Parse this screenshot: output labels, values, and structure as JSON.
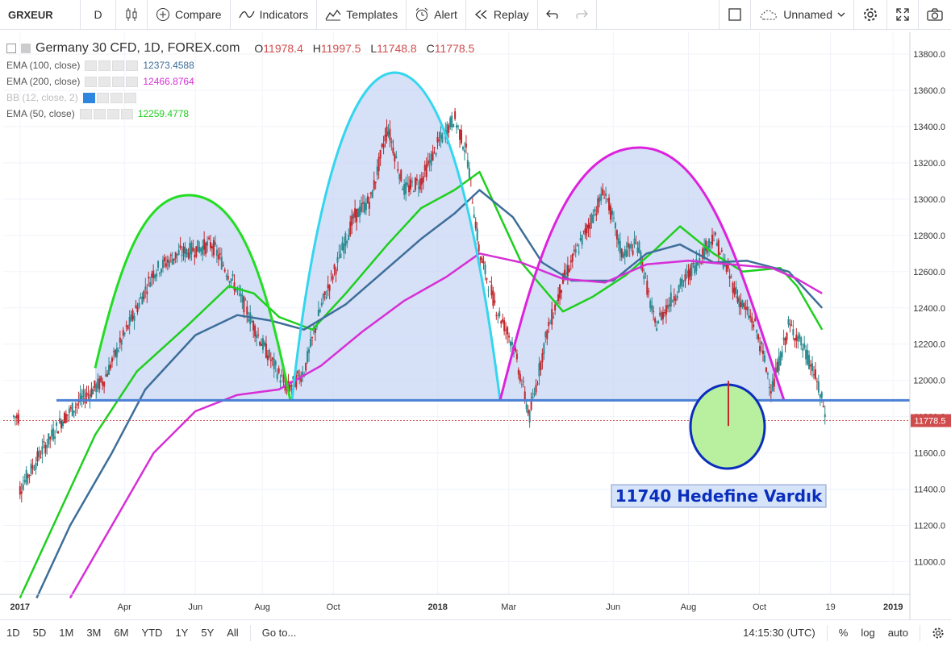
{
  "toolbar": {
    "symbol": "GRXEUR",
    "interval": "D",
    "compare": "Compare",
    "indicators": "Indicators",
    "templates": "Templates",
    "alert": "Alert",
    "replay": "Replay",
    "layout_name": "Unnamed"
  },
  "legend": {
    "title": "Germany 30 CFD, 1D, FOREX.com",
    "open_label": "O",
    "open": "11978.4",
    "high_label": "H",
    "high": "11997.5",
    "low_label": "L",
    "low": "11748.8",
    "close_label": "C",
    "close": "11778.5",
    "indicators": [
      {
        "name": "EMA (100, close)",
        "value": "12373.4588",
        "color": "#3d6e99"
      },
      {
        "name": "EMA (200, close)",
        "value": "12466.8764",
        "color": "#d62fd6"
      },
      {
        "name": "BB (12, close, 2)",
        "value": "",
        "color": "#bbbbbb"
      },
      {
        "name": "EMA (50, close)",
        "value": "12259.4778",
        "color": "#1ecf1e"
      }
    ]
  },
  "chart_data": {
    "type": "line",
    "title": "Germany 30 CFD, 1D, FOREX.com",
    "x_ticks": [
      "2017",
      "Apr",
      "Jun",
      "Aug",
      "Oct",
      "2018",
      "Mar",
      "Jun",
      "Aug",
      "Oct",
      "19",
      "2019"
    ],
    "y_ticks": [
      11000,
      11200,
      11400,
      11600,
      11800,
      12000,
      12200,
      12400,
      12600,
      12800,
      13000,
      13200,
      13400,
      13600,
      13800
    ],
    "ylim": [
      10820,
      13920
    ],
    "last_price": "11778.5",
    "neckline": 11890,
    "series": [
      {
        "name": "EMA (50, close)",
        "color": "#1ecf1e",
        "values": [
          [
            2017.0,
            10800
          ],
          [
            2017.1,
            11300
          ],
          [
            2017.18,
            11700
          ],
          [
            2017.28,
            12050
          ],
          [
            2017.4,
            12300
          ],
          [
            2017.5,
            12520
          ],
          [
            2017.56,
            12480
          ],
          [
            2017.62,
            12350
          ],
          [
            2017.7,
            12280
          ],
          [
            2017.78,
            12480
          ],
          [
            2017.88,
            12750
          ],
          [
            2017.96,
            12950
          ],
          [
            2018.04,
            13050
          ],
          [
            2018.1,
            13150
          ],
          [
            2018.15,
            12900
          ],
          [
            2018.2,
            12650
          ],
          [
            2018.3,
            12380
          ],
          [
            2018.37,
            12460
          ],
          [
            2018.45,
            12580
          ],
          [
            2018.52,
            12720
          ],
          [
            2018.58,
            12850
          ],
          [
            2018.66,
            12700
          ],
          [
            2018.73,
            12600
          ],
          [
            2018.82,
            12620
          ],
          [
            2018.86,
            12520
          ],
          [
            2018.92,
            12280
          ]
        ]
      },
      {
        "name": "EMA (100, close)",
        "color": "#3d6e99",
        "values": [
          [
            2017.04,
            10800
          ],
          [
            2017.12,
            11200
          ],
          [
            2017.22,
            11600
          ],
          [
            2017.3,
            11950
          ],
          [
            2017.42,
            12250
          ],
          [
            2017.52,
            12360
          ],
          [
            2017.6,
            12330
          ],
          [
            2017.68,
            12280
          ],
          [
            2017.78,
            12420
          ],
          [
            2017.86,
            12580
          ],
          [
            2017.96,
            12780
          ],
          [
            2018.04,
            12920
          ],
          [
            2018.1,
            13050
          ],
          [
            2018.18,
            12900
          ],
          [
            2018.25,
            12650
          ],
          [
            2018.32,
            12550
          ],
          [
            2018.42,
            12550
          ],
          [
            2018.5,
            12700
          ],
          [
            2018.58,
            12750
          ],
          [
            2018.66,
            12650
          ],
          [
            2018.74,
            12660
          ],
          [
            2018.84,
            12600
          ],
          [
            2018.92,
            12400
          ]
        ]
      },
      {
        "name": "EMA (200, close)",
        "color": "#d62fd6",
        "values": [
          [
            2017.12,
            10800
          ],
          [
            2017.22,
            11200
          ],
          [
            2017.32,
            11600
          ],
          [
            2017.42,
            11830
          ],
          [
            2017.52,
            11920
          ],
          [
            2017.62,
            11950
          ],
          [
            2017.72,
            12080
          ],
          [
            2017.82,
            12270
          ],
          [
            2017.92,
            12440
          ],
          [
            2018.02,
            12570
          ],
          [
            2018.1,
            12700
          ],
          [
            2018.2,
            12650
          ],
          [
            2018.3,
            12560
          ],
          [
            2018.4,
            12540
          ],
          [
            2018.5,
            12640
          ],
          [
            2018.6,
            12660
          ],
          [
            2018.7,
            12640
          ],
          [
            2018.8,
            12620
          ],
          [
            2018.86,
            12560
          ],
          [
            2018.92,
            12480
          ]
        ]
      }
    ]
  },
  "annotation": {
    "text": "11740 Hedefine Vardık"
  },
  "bottombar": {
    "ranges": [
      "1D",
      "5D",
      "1M",
      "3M",
      "6M",
      "YTD",
      "1Y",
      "5Y",
      "All"
    ],
    "goto": "Go to...",
    "clock": "14:15:30 (UTC)",
    "pct": "%",
    "log": "log",
    "auto": "auto"
  }
}
